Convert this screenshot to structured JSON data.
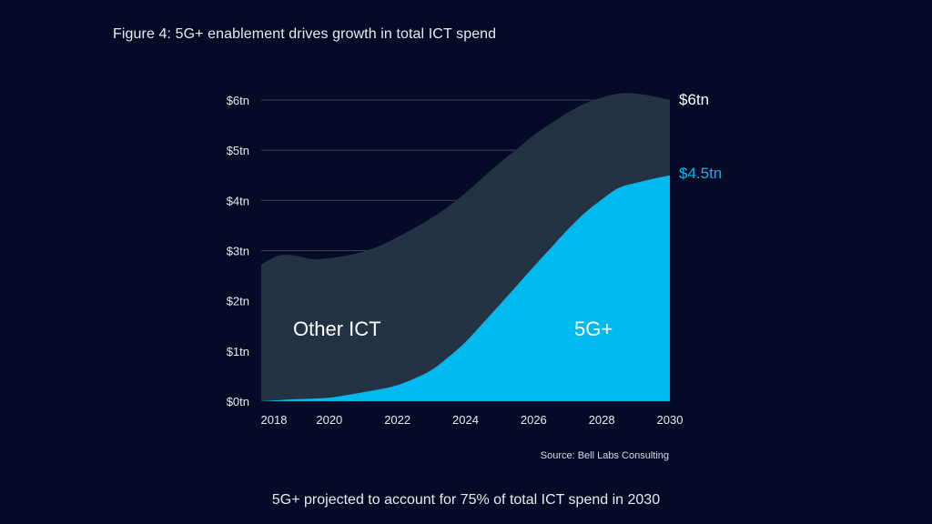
{
  "figure_title": "Figure 4: 5G+ enablement drives growth in total ICT spend",
  "source": "Source: Bell Labs Consulting",
  "caption": "5G+ projected to account for 75% of total ICT spend in 2030",
  "colors": {
    "background": "#050a26",
    "other_ict": "#243344",
    "five_g": "#00b9ef",
    "text": "#ffffff",
    "gridline": "#3a4150"
  },
  "chart_data": {
    "type": "area",
    "stacked": true,
    "x": [
      2018,
      2018.5,
      2019,
      2019.5,
      2020,
      2020.5,
      2021,
      2021.5,
      2022,
      2022.5,
      2023,
      2023.5,
      2024,
      2024.5,
      2025,
      2025.5,
      2026,
      2026.5,
      2027,
      2027.5,
      2028,
      2028.5,
      2029,
      2029.5,
      2030
    ],
    "x_ticks": [
      2018,
      2020,
      2022,
      2024,
      2026,
      2028,
      2030
    ],
    "x_tick_labels": [
      "2018",
      "2020",
      "2022",
      "2024",
      "2026",
      "2028",
      "2030"
    ],
    "y_ticks": [
      0,
      1,
      2,
      3,
      4,
      5,
      6
    ],
    "y_tick_labels": [
      "$0tn",
      "$1tn",
      "$2tn",
      "$3tn",
      "$4tn",
      "$5tn",
      "$6tn"
    ],
    "ylim": [
      0,
      6
    ],
    "xlim": [
      2018,
      2030
    ],
    "series": [
      {
        "name": "5G+",
        "label": "5G+",
        "end_label": "$4.5tn",
        "values": [
          0.0,
          0.02,
          0.04,
          0.05,
          0.07,
          0.12,
          0.18,
          0.24,
          0.32,
          0.45,
          0.62,
          0.88,
          1.18,
          1.55,
          1.92,
          2.3,
          2.68,
          3.05,
          3.42,
          3.75,
          4.02,
          4.25,
          4.35,
          4.43,
          4.5
        ]
      },
      {
        "name": "Other ICT",
        "label": "Other ICT",
        "end_label": "$6tn",
        "values": [
          2.72,
          2.88,
          2.86,
          2.78,
          2.78,
          2.78,
          2.8,
          2.86,
          2.95,
          3.0,
          3.03,
          3.0,
          2.97,
          2.9,
          2.83,
          2.72,
          2.62,
          2.48,
          2.33,
          2.18,
          2.03,
          1.88,
          1.78,
          1.65,
          1.5
        ]
      }
    ],
    "title": "",
    "xlabel": "",
    "ylabel": "",
    "grid": "horizontal"
  }
}
